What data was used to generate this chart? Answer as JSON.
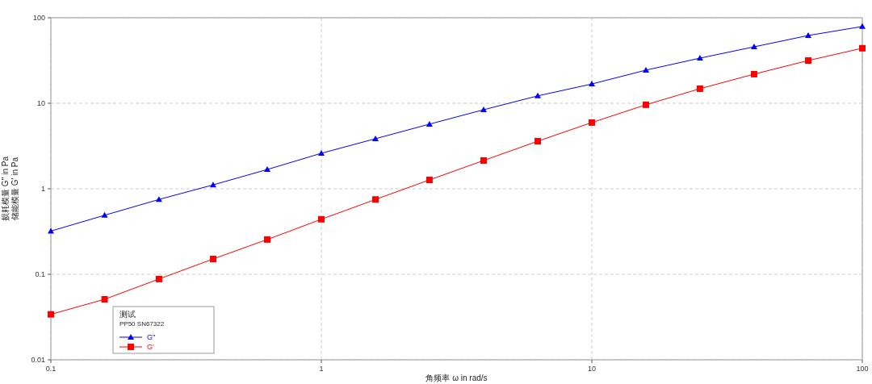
{
  "chart_data": {
    "type": "line",
    "xlabel": "角频率 ω in rad/s",
    "ylabel": "损耗模量 G'' in Pa\n储能模量 G' in Pa",
    "legend_title": "测试",
    "annotations": [
      "PP50 SN67322"
    ],
    "x": [
      0.1,
      0.158,
      0.251,
      0.398,
      0.631,
      1,
      1.585,
      2.51,
      3.98,
      6.31,
      10,
      15.85,
      25.1,
      39.8,
      63.1,
      100
    ],
    "series": [
      {
        "name": "G''",
        "color": "#0000ff",
        "marker": "triangle",
        "values": [
          0.32,
          0.49,
          0.75,
          1.11,
          1.68,
          2.6,
          3.85,
          5.7,
          8.4,
          12.2,
          16.8,
          24.4,
          33.7,
          45.7,
          62,
          79
        ]
      },
      {
        "name": "G'",
        "color": "#ff0000",
        "marker": "square",
        "values": [
          0.034,
          0.051,
          0.088,
          0.151,
          0.255,
          0.44,
          0.75,
          1.27,
          2.14,
          3.6,
          5.95,
          9.6,
          14.8,
          21.9,
          31.6,
          44
        ]
      }
    ],
    "log": "xy",
    "xlim": [
      0.1,
      100
    ],
    "ylim": [
      0.01,
      100
    ],
    "xticks": [
      0.1,
      1,
      10,
      100
    ],
    "yticks": [
      0.01,
      0.1,
      1,
      10,
      100
    ],
    "grid": true,
    "legend": "bottom left",
    "line_style": "solid"
  }
}
